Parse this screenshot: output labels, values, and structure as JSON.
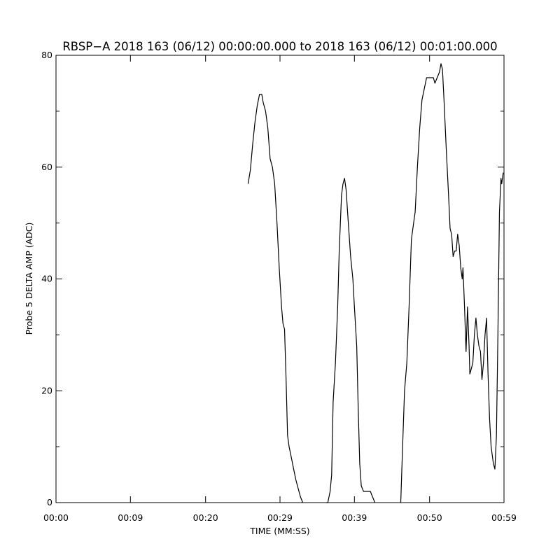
{
  "chart_data": {
    "type": "line",
    "title": "RBSP−A 2018 163 (06/12) 00:00:00.000 to 2018 163 (06/12) 00:01:00.000",
    "xlabel": "TIME (MM:SS)",
    "ylabel": "Probe 5 DELTA AMP (ADC)",
    "xlim": [
      0,
      59
    ],
    "ylim": [
      0,
      80
    ],
    "x_ticks": [
      {
        "value": 0,
        "label": "00:00"
      },
      {
        "value": 9.8,
        "label": "00:09"
      },
      {
        "value": 19.7,
        "label": "00:20"
      },
      {
        "value": 29.5,
        "label": "00:29"
      },
      {
        "value": 39.3,
        "label": "00:39"
      },
      {
        "value": 49.2,
        "label": "00:50"
      },
      {
        "value": 59,
        "label": "00:59"
      }
    ],
    "y_ticks": [
      {
        "value": 0,
        "label": "0"
      },
      {
        "value": 20,
        "label": "20"
      },
      {
        "value": 40,
        "label": "40"
      },
      {
        "value": 60,
        "label": "60"
      },
      {
        "value": 80,
        "label": "80"
      }
    ],
    "y_minor_step": 10,
    "grid": false,
    "series": [
      {
        "color": "#000000",
        "segments": [
          [
            [
              25.3,
              57
            ],
            [
              25.6,
              59.5
            ],
            [
              25.9,
              64
            ],
            [
              26.2,
              68
            ],
            [
              26.5,
              71
            ],
            [
              26.8,
              73
            ],
            [
              27.1,
              73
            ],
            [
              27.3,
              71.5
            ],
            [
              27.6,
              70
            ],
            [
              27.9,
              67
            ],
            [
              28.2,
              61.5
            ],
            [
              28.5,
              60
            ],
            [
              28.8,
              57
            ],
            [
              29.1,
              50
            ],
            [
              29.4,
              42
            ],
            [
              29.7,
              35
            ],
            [
              29.9,
              32
            ],
            [
              30.1,
              31
            ],
            [
              30.3,
              22
            ],
            [
              30.5,
              12
            ],
            [
              30.7,
              10
            ],
            [
              31.0,
              8
            ],
            [
              31.3,
              6
            ],
            [
              31.6,
              4
            ],
            [
              31.9,
              2.5
            ],
            [
              32.2,
              1
            ],
            [
              32.5,
              0
            ]
          ],
          [
            [
              35.6,
              0
            ],
            [
              35.8,
              0
            ],
            [
              36.1,
              2
            ],
            [
              36.3,
              5
            ],
            [
              36.5,
              18
            ],
            [
              36.8,
              25
            ],
            [
              37.1,
              35
            ],
            [
              37.3,
              45
            ],
            [
              37.6,
              55
            ],
            [
              37.8,
              57
            ],
            [
              38.0,
              58
            ],
            [
              38.2,
              56
            ],
            [
              38.5,
              50
            ],
            [
              38.8,
              44
            ],
            [
              39.1,
              40
            ],
            [
              39.3,
              35
            ],
            [
              39.6,
              28
            ],
            [
              39.8,
              17
            ],
            [
              40.0,
              7
            ],
            [
              40.2,
              3
            ],
            [
              40.5,
              2
            ],
            [
              41.0,
              2
            ],
            [
              41.4,
              2
            ],
            [
              41.7,
              1
            ],
            [
              42.0,
              0
            ]
          ],
          [
            [
              45.4,
              0
            ],
            [
              45.6,
              8
            ],
            [
              45.9,
              20
            ],
            [
              46.2,
              25
            ],
            [
              46.5,
              35
            ],
            [
              46.8,
              47
            ],
            [
              47.0,
              49
            ],
            [
              47.3,
              52
            ],
            [
              47.6,
              60
            ],
            [
              47.9,
              67
            ],
            [
              48.2,
              72
            ],
            [
              48.5,
              74
            ],
            [
              48.8,
              76
            ],
            [
              49.1,
              76
            ],
            [
              49.4,
              76
            ],
            [
              49.7,
              76
            ],
            [
              49.9,
              75
            ],
            [
              50.2,
              76
            ],
            [
              50.5,
              77
            ],
            [
              50.7,
              78.5
            ],
            [
              50.9,
              77.5
            ],
            [
              51.1,
              72
            ],
            [
              51.4,
              63
            ],
            [
              51.7,
              55
            ],
            [
              51.9,
              49
            ],
            [
              52.1,
              48
            ],
            [
              52.3,
              44
            ],
            [
              52.5,
              45
            ],
            [
              52.7,
              45
            ],
            [
              52.9,
              48
            ],
            [
              53.1,
              46
            ],
            [
              53.3,
              42
            ],
            [
              53.5,
              40
            ],
            [
              53.6,
              42
            ],
            [
              53.8,
              35
            ],
            [
              54.0,
              27
            ],
            [
              54.2,
              35
            ],
            [
              54.4,
              28
            ],
            [
              54.5,
              23
            ],
            [
              54.7,
              24
            ],
            [
              54.9,
              25
            ],
            [
              55.1,
              30
            ],
            [
              55.3,
              33
            ],
            [
              55.5,
              30
            ],
            [
              55.7,
              28
            ],
            [
              55.9,
              27
            ],
            [
              56.1,
              22
            ],
            [
              56.3,
              25
            ],
            [
              56.5,
              30
            ],
            [
              56.7,
              33
            ],
            [
              56.9,
              23
            ],
            [
              57.1,
              15
            ],
            [
              57.3,
              10
            ],
            [
              57.6,
              7
            ],
            [
              57.8,
              6
            ],
            [
              58.0,
              12
            ],
            [
              58.2,
              30
            ],
            [
              58.4,
              52
            ],
            [
              58.6,
              58
            ],
            [
              58.7,
              57
            ],
            [
              58.9,
              59
            ]
          ]
        ]
      }
    ]
  }
}
